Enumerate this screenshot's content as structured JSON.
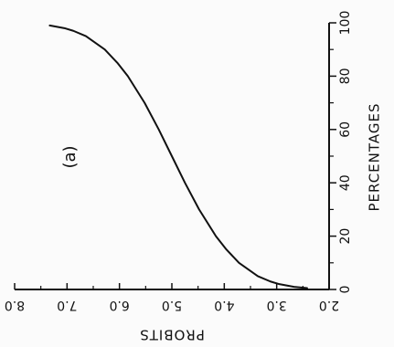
{
  "chart_data": {
    "type": "line",
    "panel_label": "(a)",
    "xlabel": "PERCENTAGES",
    "ylabel": "PROBITS",
    "xlim": [
      0,
      100
    ],
    "ylim": [
      2.0,
      8.0
    ],
    "x_ticks": [
      0,
      20,
      40,
      60,
      80,
      100
    ],
    "y_ticks": [
      2.0,
      3.0,
      4.0,
      5.0,
      6.0,
      7.0,
      8.0
    ],
    "x_tick_labels": [
      "0",
      "20",
      "40",
      "60",
      "80",
      "100"
    ],
    "y_tick_labels": [
      "2.0",
      "3.0",
      "4.0",
      "5.0",
      "6.0",
      "7.0",
      "8.0"
    ],
    "grid": false,
    "orientation": "rotated-90-ccw",
    "series": [
      {
        "x": [
          0.5,
          1,
          2,
          3,
          5,
          10,
          15,
          20,
          30,
          40,
          50,
          60,
          70,
          80,
          85,
          90,
          95,
          97,
          98,
          99
        ],
        "y": [
          2.42,
          2.67,
          2.95,
          3.12,
          3.36,
          3.72,
          3.96,
          4.16,
          4.48,
          4.75,
          5.0,
          5.25,
          5.52,
          5.84,
          6.04,
          6.28,
          6.64,
          6.88,
          7.05,
          7.33
        ]
      }
    ],
    "colors": {
      "line": "#111111",
      "axis": "#111111",
      "text": "#111111"
    }
  }
}
